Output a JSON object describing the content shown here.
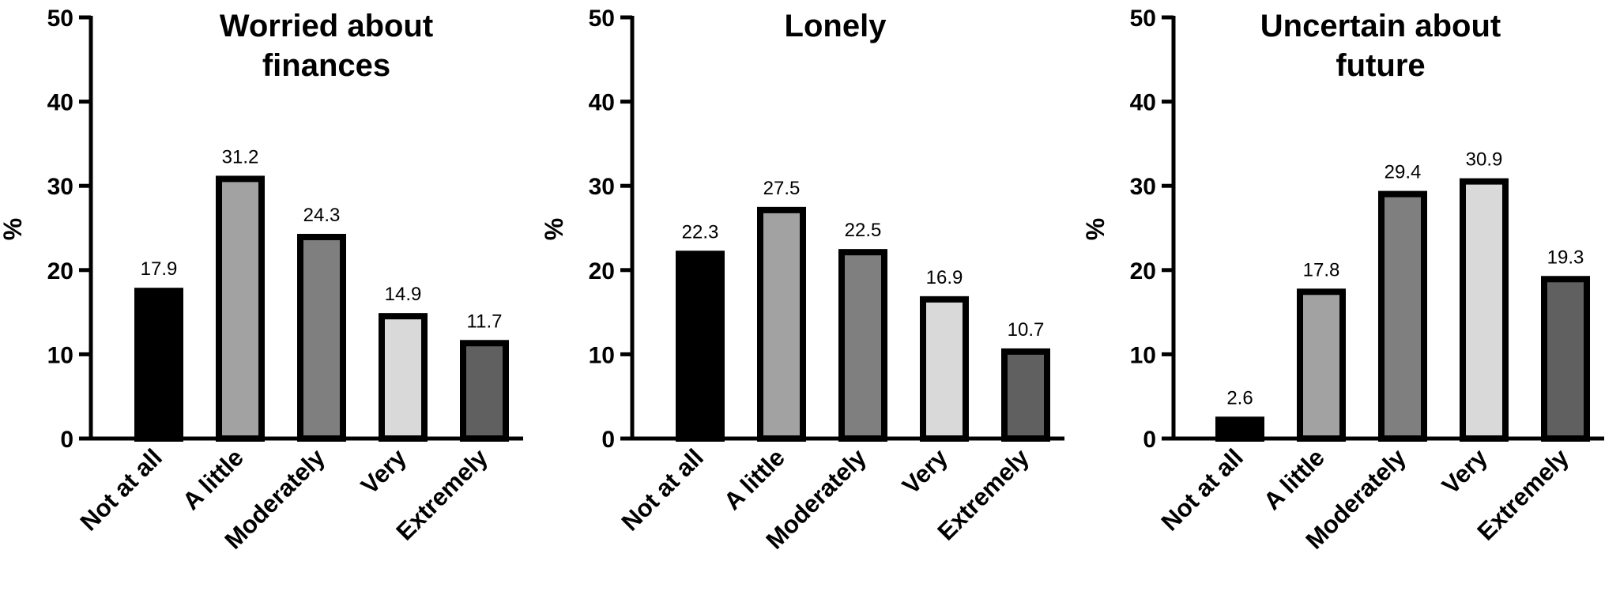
{
  "chart_data": [
    {
      "type": "bar",
      "title_lines": [
        "Worried about",
        "finances"
      ],
      "ylabel": "%",
      "ylim": [
        0,
        50
      ],
      "yticks": [
        0,
        10,
        20,
        30,
        40,
        50
      ],
      "categories": [
        "Not at all",
        "A little",
        "Moderately",
        "Very",
        "Extremely"
      ],
      "values": [
        17.9,
        31.2,
        24.3,
        14.9,
        11.7
      ],
      "value_labels": [
        "17.9",
        "31.2",
        "24.3",
        "14.9",
        "11.7"
      ]
    },
    {
      "type": "bar",
      "title_lines": [
        "Lonely"
      ],
      "ylabel": "%",
      "ylim": [
        0,
        50
      ],
      "yticks": [
        0,
        10,
        20,
        30,
        40,
        50
      ],
      "categories": [
        "Not at all",
        "A little",
        "Moderately",
        "Very",
        "Extremely"
      ],
      "values": [
        22.3,
        27.5,
        22.5,
        16.9,
        10.7
      ],
      "value_labels": [
        "22.3",
        "27.5",
        "22.5",
        "16.9",
        "10.7"
      ]
    },
    {
      "type": "bar",
      "title_lines": [
        "Uncertain about",
        "future"
      ],
      "ylabel": "%",
      "ylim": [
        0,
        50
      ],
      "yticks": [
        0,
        10,
        20,
        30,
        40,
        50
      ],
      "categories": [
        "Not at all",
        "A little",
        "Moderately",
        "Very",
        "Extremely"
      ],
      "values": [
        2.6,
        17.8,
        29.4,
        30.9,
        19.3
      ],
      "value_labels": [
        "2.6",
        "17.8",
        "29.4",
        "30.9",
        "19.3"
      ]
    }
  ],
  "colors": {
    "bar_fills": [
      "#000000",
      "#a2a2a2",
      "#7f7f7f",
      "#d9d9d9",
      "#606060"
    ],
    "bar_outline": "#000000",
    "axis": "#000000"
  }
}
